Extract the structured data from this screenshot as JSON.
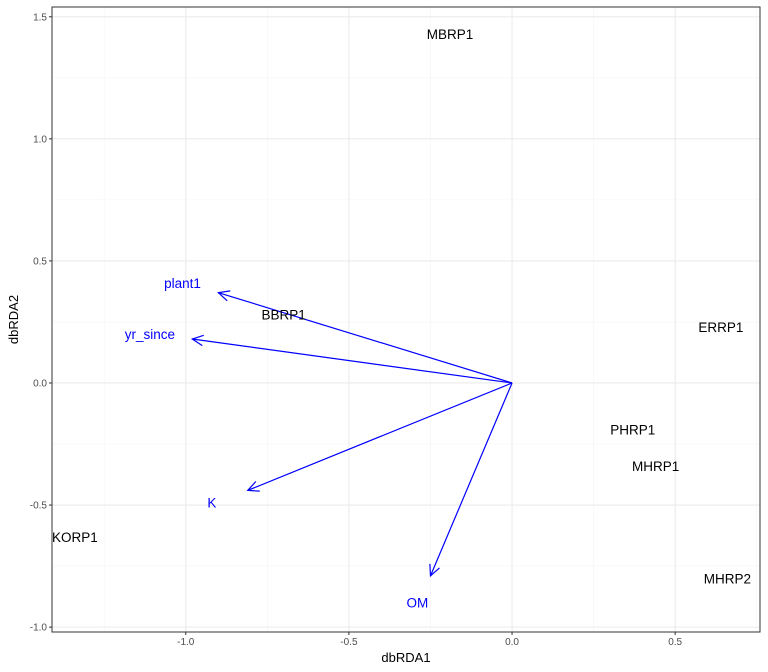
{
  "chart_data": {
    "type": "scatter",
    "xlabel": "dbRDA1",
    "ylabel": "dbRDA2",
    "xlim": [
      -1.41,
      0.76
    ],
    "ylim": [
      -1.02,
      1.54
    ],
    "x_ticks": [
      -1.0,
      -0.5,
      0.0,
      0.5
    ],
    "x_tick_labels": [
      "-1.0",
      "-0.5",
      "0.0",
      "0.5"
    ],
    "y_ticks": [
      -1.0,
      -0.5,
      0.0,
      0.5,
      1.0,
      1.5
    ],
    "y_tick_labels": [
      "-1.0",
      "-0.5",
      "0.0",
      "0.5",
      "1.0",
      "1.5"
    ],
    "grid": true,
    "sites": [
      {
        "label": "MBRP1",
        "x": -0.19,
        "y": 1.43
      },
      {
        "label": "BBRP1",
        "x": -0.7,
        "y": 0.28
      },
      {
        "label": "ERRP1",
        "x": 0.64,
        "y": 0.23
      },
      {
        "label": "PHRP1",
        "x": 0.37,
        "y": -0.19
      },
      {
        "label": "MHRP1",
        "x": 0.44,
        "y": -0.34
      },
      {
        "label": "KORP1",
        "x": -1.34,
        "y": -0.63
      },
      {
        "label": "MHRP2",
        "x": 0.66,
        "y": -0.8
      }
    ],
    "vectors": [
      {
        "label": "plant1",
        "x": -0.9,
        "y": 0.37,
        "label_x": -1.01,
        "label_y": 0.41
      },
      {
        "label": "yr_since",
        "x": -0.98,
        "y": 0.18,
        "label_x": -1.11,
        "label_y": 0.2
      },
      {
        "label": "K",
        "x": -0.81,
        "y": -0.44,
        "label_x": -0.92,
        "label_y": -0.49
      },
      {
        "label": "OM",
        "x": -0.25,
        "y": -0.79,
        "label_x": -0.29,
        "label_y": -0.9
      }
    ],
    "colors": {
      "vectors": "#0000ff",
      "sites": "#000000",
      "grid_major": "#ebebeb",
      "grid_minor": "#f4f4f4",
      "panel_border": "#333333"
    }
  }
}
